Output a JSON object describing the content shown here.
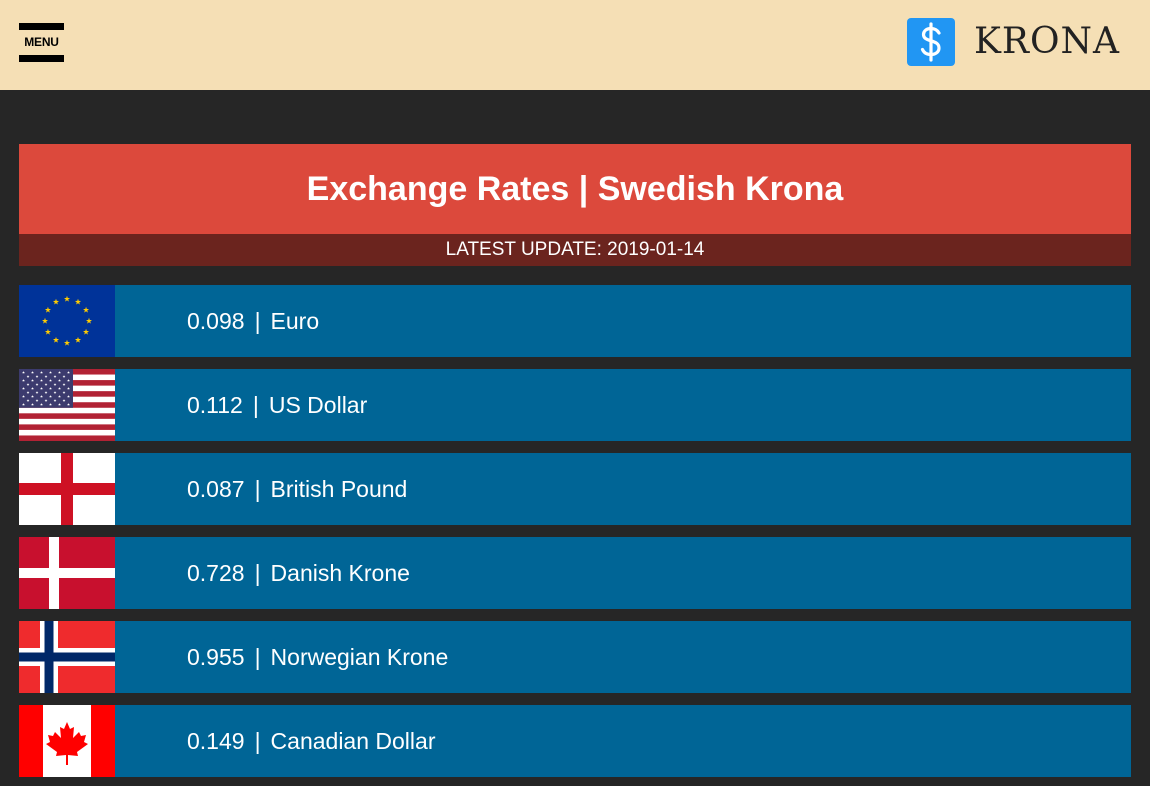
{
  "header": {
    "menu_label": "MENU",
    "brand_icon": "dollar-icon",
    "brand_name": "KRONA"
  },
  "title": "Exchange Rates | Swedish Krona",
  "latest_update": "LATEST UPDATE: 2019-01-14",
  "rates": [
    {
      "value": "0.098",
      "currency": "Euro",
      "flag": "eu-flag-icon"
    },
    {
      "value": "0.112",
      "currency": "US Dollar",
      "flag": "us-flag-icon"
    },
    {
      "value": "0.087",
      "currency": "British Pound",
      "flag": "england-flag-icon"
    },
    {
      "value": "0.728",
      "currency": "Danish Krone",
      "flag": "denmark-flag-icon"
    },
    {
      "value": "0.955",
      "currency": "Norwegian Krone",
      "flag": "norway-flag-icon"
    },
    {
      "value": "0.149",
      "currency": "Canadian Dollar",
      "flag": "canada-flag-icon"
    }
  ],
  "colors": {
    "topbar": "#f5dfb5",
    "background": "#262626",
    "header_red": "#dc493c",
    "update_strip": "#6b241e",
    "row_blue": "#006596",
    "brand_blue": "#2196f3"
  }
}
